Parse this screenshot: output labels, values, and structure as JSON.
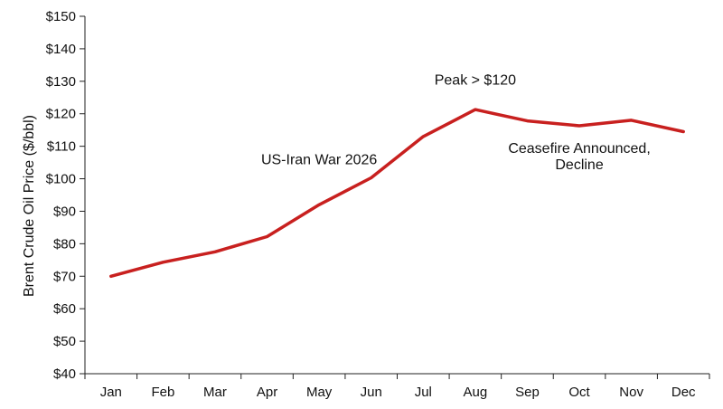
{
  "chart_data": {
    "type": "line",
    "title": "",
    "xlabel": "",
    "ylabel": "Brent Crude Oil Price ($/bbl)",
    "categories": [
      "Jan",
      "Feb",
      "Mar",
      "Apr",
      "May",
      "Jun",
      "Jul",
      "Aug",
      "Sep",
      "Oct",
      "Nov",
      "Dec"
    ],
    "series": [
      {
        "values": [
          70,
          74.3,
          77.5,
          82.2,
          92,
          100.3,
          113,
          121.3,
          117.8,
          116.3,
          118,
          114.5
        ],
        "color": "#c8201f"
      }
    ],
    "ylim": [
      40,
      150
    ],
    "yticks": [
      40,
      50,
      60,
      70,
      80,
      90,
      100,
      110,
      120,
      130,
      140,
      150
    ],
    "ytick_labels": [
      "$40",
      "$50",
      "$60",
      "$70",
      "$80",
      "$90",
      "$100",
      "$110",
      "$120",
      "$130",
      "$140",
      "$150"
    ],
    "grid": false,
    "legend": "none",
    "annotations": [
      {
        "text": "Peak > $120",
        "x": "Aug",
        "y": 129
      },
      {
        "text": "US-Iran War 2026",
        "x": "May",
        "y": 104.5
      },
      {
        "text": "Ceasefire Announced,",
        "x": "Oct",
        "y": 108
      },
      {
        "text": "Decline",
        "x": "Oct",
        "y": 103
      }
    ]
  }
}
